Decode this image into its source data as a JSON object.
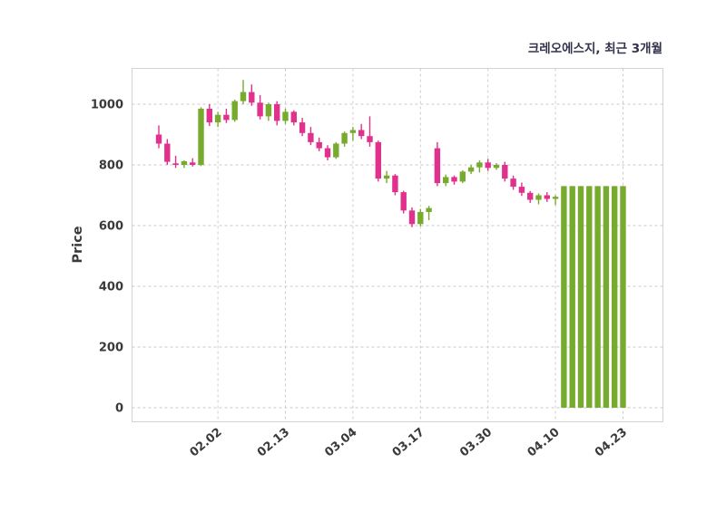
{
  "chart_data": {
    "type": "candlestick",
    "title": "크레오에스지, 최근 3개월",
    "ylabel": "Price",
    "xlabel": "",
    "grid": true,
    "legend": "none",
    "ylim": [
      -45,
      1120
    ],
    "y_ticks": [
      0,
      200,
      400,
      600,
      800,
      1000
    ],
    "x_tick_labels": [
      "02.02",
      "02.13",
      "03.04",
      "03.17",
      "03.30",
      "04.10",
      "04.23"
    ],
    "x_tick_indices": [
      7,
      15,
      23,
      31,
      39,
      47,
      55
    ],
    "up_color": "#77ab2e",
    "down_color": "#e0328c",
    "columns": [
      "open",
      "high",
      "low",
      "close"
    ],
    "candles": [
      [
        900,
        930,
        855,
        870
      ],
      [
        870,
        885,
        800,
        810
      ],
      [
        805,
        830,
        790,
        800
      ],
      [
        800,
        815,
        790,
        812
      ],
      [
        808,
        822,
        795,
        800
      ],
      [
        800,
        990,
        796,
        985
      ],
      [
        985,
        1000,
        928,
        940
      ],
      [
        940,
        975,
        925,
        965
      ],
      [
        965,
        985,
        938,
        948
      ],
      [
        948,
        1015,
        942,
        1010
      ],
      [
        1010,
        1080,
        1000,
        1040
      ],
      [
        1040,
        1065,
        995,
        1005
      ],
      [
        1005,
        1030,
        950,
        960
      ],
      [
        960,
        1005,
        945,
        1000
      ],
      [
        1000,
        1010,
        930,
        945
      ],
      [
        945,
        985,
        935,
        975
      ],
      [
        975,
        980,
        930,
        940
      ],
      [
        940,
        955,
        895,
        905
      ],
      [
        905,
        925,
        865,
        875
      ],
      [
        875,
        890,
        845,
        855
      ],
      [
        855,
        865,
        815,
        825
      ],
      [
        825,
        875,
        820,
        870
      ],
      [
        870,
        910,
        860,
        905
      ],
      [
        905,
        925,
        880,
        915
      ],
      [
        915,
        935,
        885,
        895
      ],
      [
        895,
        960,
        860,
        875
      ],
      [
        875,
        880,
        745,
        755
      ],
      [
        755,
        780,
        740,
        765
      ],
      [
        765,
        770,
        700,
        710
      ],
      [
        710,
        715,
        640,
        650
      ],
      [
        650,
        660,
        595,
        605
      ],
      [
        605,
        655,
        598,
        645
      ],
      [
        645,
        665,
        618,
        658
      ],
      [
        855,
        875,
        730,
        740
      ],
      [
        740,
        768,
        730,
        760
      ],
      [
        760,
        765,
        735,
        745
      ],
      [
        745,
        782,
        740,
        778
      ],
      [
        778,
        800,
        770,
        792
      ],
      [
        792,
        815,
        775,
        808
      ],
      [
        808,
        820,
        780,
        790
      ],
      [
        790,
        806,
        784,
        800
      ],
      [
        800,
        810,
        745,
        755
      ],
      [
        755,
        765,
        718,
        728
      ],
      [
        728,
        742,
        698,
        708
      ],
      [
        708,
        714,
        675,
        685
      ],
      [
        685,
        706,
        670,
        700
      ],
      [
        700,
        710,
        678,
        688
      ],
      [
        688,
        700,
        668,
        695
      ],
      [
        0,
        730,
        0,
        730
      ],
      [
        0,
        730,
        0,
        730
      ],
      [
        0,
        730,
        0,
        730
      ],
      [
        0,
        730,
        0,
        730
      ],
      [
        0,
        730,
        0,
        730
      ],
      [
        0,
        730,
        0,
        730
      ],
      [
        0,
        730,
        0,
        730
      ],
      [
        0,
        730,
        0,
        730
      ]
    ]
  }
}
